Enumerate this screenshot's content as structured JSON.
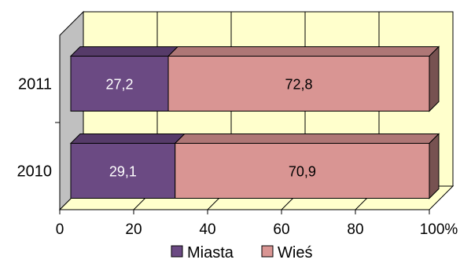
{
  "chart_data": {
    "type": "bar",
    "orientation": "horizontal",
    "stacked": "percent",
    "style": "3d",
    "categories": [
      "2010",
      "2011"
    ],
    "series": [
      {
        "name": "Miasta",
        "values": [
          29.1,
          27.2
        ],
        "labels": [
          "29,1",
          "27,2"
        ],
        "color": "#6b4a83",
        "label_color": "#ffffff"
      },
      {
        "name": "Wieś",
        "values": [
          70.9,
          72.8
        ],
        "labels": [
          "70,9",
          "72,8"
        ],
        "color": "#d99593",
        "label_color": "#000000"
      }
    ],
    "xticks": [
      "0",
      "20",
      "40",
      "60",
      "80",
      "100%"
    ],
    "xlim": [
      0,
      100
    ],
    "grid": true,
    "legend": "bottom",
    "colors": {
      "wall": "#ffffcc",
      "floor": "#ffffcc",
      "side_wall": "#c0c0c0",
      "grid": "#000000"
    }
  }
}
